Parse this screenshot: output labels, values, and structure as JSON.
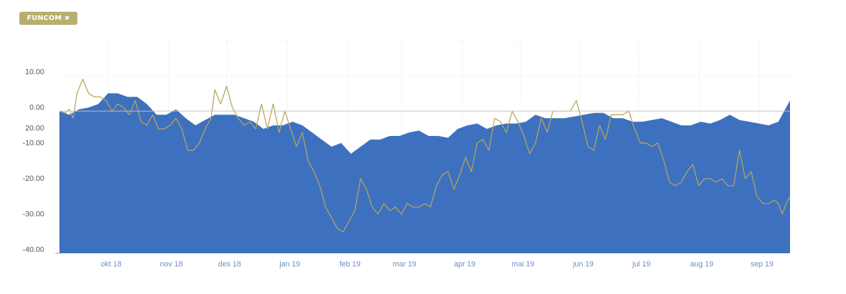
{
  "filter_chip": {
    "label": "FUNCOM",
    "remove_icon": "close-icon",
    "remove_glyph": "✖",
    "color": "#b9ae6e"
  },
  "chart_data": {
    "type": "area",
    "x_axis_type": "datetime",
    "ylim": [
      -40,
      20
    ],
    "y_ticks": [
      {
        "value": 10,
        "label": "10.00"
      },
      {
        "value": 0,
        "label": "0.00"
      },
      {
        "value": -10,
        "label": "-10.00"
      },
      {
        "value": -20,
        "label": "-20.00"
      },
      {
        "value": -30,
        "label": "-30.00"
      },
      {
        "value": -40,
        "label": "-40.00"
      }
    ],
    "y_tick_overlap_label": "20.00",
    "x_range": [
      "2018-09-03",
      "2019-09-14"
    ],
    "x_ticks": [
      {
        "date": "2018-10-01",
        "label": "okt 18"
      },
      {
        "date": "2018-11-01",
        "label": "nov 18"
      },
      {
        "date": "2018-12-01",
        "label": "des 18"
      },
      {
        "date": "2019-01-01",
        "label": "jan 19"
      },
      {
        "date": "2019-02-01",
        "label": "feb 19"
      },
      {
        "date": "2019-03-01",
        "label": "mar 19"
      },
      {
        "date": "2019-04-01",
        "label": "apr 19"
      },
      {
        "date": "2019-05-01",
        "label": "mai 19"
      },
      {
        "date": "2019-06-01",
        "label": "jun 19"
      },
      {
        "date": "2019-07-01",
        "label": "jul 19"
      },
      {
        "date": "2019-08-01",
        "label": "aug 19"
      },
      {
        "date": "2019-09-01",
        "label": "sep 19"
      }
    ],
    "grid": true,
    "series": [
      {
        "kind": "area",
        "color": "#3d71bf",
        "points": [
          [
            "2018-09-03",
            0
          ],
          [
            "2018-09-08",
            -1
          ],
          [
            "2018-09-13",
            0.5
          ],
          [
            "2018-09-18",
            1
          ],
          [
            "2018-09-23",
            2
          ],
          [
            "2018-09-28",
            5
          ],
          [
            "2018-10-03",
            5
          ],
          [
            "2018-10-08",
            4
          ],
          [
            "2018-10-13",
            4
          ],
          [
            "2018-10-18",
            2
          ],
          [
            "2018-10-23",
            -1
          ],
          [
            "2018-10-28",
            -1
          ],
          [
            "2018-11-02",
            0.5
          ],
          [
            "2018-11-07",
            -2
          ],
          [
            "2018-11-12",
            -4
          ],
          [
            "2018-11-17",
            -2.5
          ],
          [
            "2018-11-22",
            -1
          ],
          [
            "2018-11-27",
            -1
          ],
          [
            "2018-12-02",
            -1
          ],
          [
            "2018-12-07",
            -2
          ],
          [
            "2018-12-12",
            -3
          ],
          [
            "2018-12-17",
            -5
          ],
          [
            "2018-12-22",
            -4
          ],
          [
            "2018-12-27",
            -4
          ],
          [
            "2019-01-01",
            -3
          ],
          [
            "2019-01-06",
            -4
          ],
          [
            "2019-01-11",
            -6
          ],
          [
            "2019-01-16",
            -8
          ],
          [
            "2019-01-21",
            -10
          ],
          [
            "2019-01-26",
            -9
          ],
          [
            "2019-01-31",
            -12
          ],
          [
            "2019-02-05",
            -10
          ],
          [
            "2019-02-10",
            -8
          ],
          [
            "2019-02-15",
            -8
          ],
          [
            "2019-02-20",
            -7
          ],
          [
            "2019-02-25",
            -7
          ],
          [
            "2019-03-02",
            -6
          ],
          [
            "2019-03-07",
            -5.5
          ],
          [
            "2019-03-12",
            -7
          ],
          [
            "2019-03-17",
            -7
          ],
          [
            "2019-03-22",
            -7.5
          ],
          [
            "2019-03-27",
            -5
          ],
          [
            "2019-04-01",
            -4
          ],
          [
            "2019-04-06",
            -3.5
          ],
          [
            "2019-04-11",
            -5
          ],
          [
            "2019-04-16",
            -4
          ],
          [
            "2019-04-21",
            -3.5
          ],
          [
            "2019-04-26",
            -3.5
          ],
          [
            "2019-05-01",
            -3
          ],
          [
            "2019-05-06",
            -1
          ],
          [
            "2019-05-11",
            -2
          ],
          [
            "2019-05-16",
            -2
          ],
          [
            "2019-05-21",
            -2
          ],
          [
            "2019-05-26",
            -1.5
          ],
          [
            "2019-05-31",
            -1
          ],
          [
            "2019-06-05",
            -0.5
          ],
          [
            "2019-06-10",
            -0.5
          ],
          [
            "2019-06-15",
            -2
          ],
          [
            "2019-06-20",
            -2
          ],
          [
            "2019-06-25",
            -3
          ],
          [
            "2019-06-30",
            -3
          ],
          [
            "2019-07-05",
            -2.5
          ],
          [
            "2019-07-10",
            -2
          ],
          [
            "2019-07-15",
            -3
          ],
          [
            "2019-07-20",
            -4
          ],
          [
            "2019-07-25",
            -4
          ],
          [
            "2019-07-30",
            -3
          ],
          [
            "2019-08-04",
            -3.5
          ],
          [
            "2019-08-09",
            -2.5
          ],
          [
            "2019-08-14",
            -1
          ],
          [
            "2019-08-19",
            -2.5
          ],
          [
            "2019-08-24",
            -3
          ],
          [
            "2019-08-29",
            -3.5
          ],
          [
            "2019-09-03",
            -4
          ],
          [
            "2019-09-08",
            -3
          ],
          [
            "2019-09-14",
            3
          ]
        ]
      },
      {
        "kind": "line",
        "color": "#b5a45e",
        "points": [
          [
            "2018-09-03",
            0
          ],
          [
            "2018-09-06",
            -0.5
          ],
          [
            "2018-09-08",
            0.5
          ],
          [
            "2018-09-10",
            -2
          ],
          [
            "2018-09-12",
            5
          ],
          [
            "2018-09-15",
            9
          ],
          [
            "2018-09-18",
            5
          ],
          [
            "2018-09-21",
            4
          ],
          [
            "2018-09-24",
            4
          ],
          [
            "2018-09-27",
            3
          ],
          [
            "2018-09-30",
            0
          ],
          [
            "2018-10-03",
            2
          ],
          [
            "2018-10-06",
            1
          ],
          [
            "2018-10-09",
            -1
          ],
          [
            "2018-10-12",
            3
          ],
          [
            "2018-10-15",
            -3
          ],
          [
            "2018-10-18",
            -4
          ],
          [
            "2018-10-21",
            -1
          ],
          [
            "2018-10-24",
            -5
          ],
          [
            "2018-10-27",
            -5
          ],
          [
            "2018-10-30",
            -4
          ],
          [
            "2018-11-02",
            -2
          ],
          [
            "2018-11-05",
            -5
          ],
          [
            "2018-11-08",
            -11
          ],
          [
            "2018-11-11",
            -11
          ],
          [
            "2018-11-14",
            -9
          ],
          [
            "2018-11-17",
            -5
          ],
          [
            "2018-11-20",
            -2
          ],
          [
            "2018-11-22",
            6
          ],
          [
            "2018-11-25",
            2
          ],
          [
            "2018-11-28",
            7
          ],
          [
            "2018-12-01",
            1
          ],
          [
            "2018-12-04",
            -2
          ],
          [
            "2018-12-07",
            -4
          ],
          [
            "2018-12-10",
            -3
          ],
          [
            "2018-12-13",
            -5
          ],
          [
            "2018-12-16",
            2
          ],
          [
            "2018-12-19",
            -5
          ],
          [
            "2018-12-22",
            2
          ],
          [
            "2018-12-25",
            -6
          ],
          [
            "2018-12-28",
            0
          ],
          [
            "2018-12-31",
            -5
          ],
          [
            "2019-01-03",
            -10
          ],
          [
            "2019-01-06",
            -6
          ],
          [
            "2019-01-09",
            -14
          ],
          [
            "2019-01-12",
            -17
          ],
          [
            "2019-01-15",
            -21
          ],
          [
            "2019-01-18",
            -27
          ],
          [
            "2019-01-21",
            -30
          ],
          [
            "2019-01-24",
            -33
          ],
          [
            "2019-01-27",
            -34
          ],
          [
            "2019-01-30",
            -31
          ],
          [
            "2019-02-02",
            -28
          ],
          [
            "2019-02-05",
            -19
          ],
          [
            "2019-02-08",
            -22
          ],
          [
            "2019-02-11",
            -27
          ],
          [
            "2019-02-14",
            -29
          ],
          [
            "2019-02-17",
            -26
          ],
          [
            "2019-02-20",
            -28
          ],
          [
            "2019-02-23",
            -27
          ],
          [
            "2019-02-26",
            -29
          ],
          [
            "2019-03-01",
            -26
          ],
          [
            "2019-03-04",
            -27
          ],
          [
            "2019-03-07",
            -27
          ],
          [
            "2019-03-10",
            -26
          ],
          [
            "2019-03-13",
            -27
          ],
          [
            "2019-03-16",
            -21
          ],
          [
            "2019-03-19",
            -18
          ],
          [
            "2019-03-22",
            -17
          ],
          [
            "2019-03-25",
            -22
          ],
          [
            "2019-03-28",
            -18
          ],
          [
            "2019-03-31",
            -13
          ],
          [
            "2019-04-03",
            -17
          ],
          [
            "2019-04-06",
            -9
          ],
          [
            "2019-04-09",
            -8
          ],
          [
            "2019-04-12",
            -11
          ],
          [
            "2019-04-15",
            -2
          ],
          [
            "2019-04-18",
            -3
          ],
          [
            "2019-04-21",
            -6
          ],
          [
            "2019-04-24",
            0
          ],
          [
            "2019-04-27",
            -3
          ],
          [
            "2019-04-30",
            -7
          ],
          [
            "2019-05-03",
            -12
          ],
          [
            "2019-05-06",
            -9
          ],
          [
            "2019-05-09",
            -2
          ],
          [
            "2019-05-12",
            -6
          ],
          [
            "2019-05-15",
            0
          ],
          [
            "2019-05-18",
            0
          ],
          [
            "2019-05-21",
            0
          ],
          [
            "2019-05-24",
            0
          ],
          [
            "2019-05-27",
            3
          ],
          [
            "2019-05-30",
            -3
          ],
          [
            "2019-06-02",
            -10
          ],
          [
            "2019-06-05",
            -11
          ],
          [
            "2019-06-08",
            -4
          ],
          [
            "2019-06-11",
            -8
          ],
          [
            "2019-06-14",
            -1
          ],
          [
            "2019-06-17",
            -1
          ],
          [
            "2019-06-20",
            -1
          ],
          [
            "2019-06-23",
            0
          ],
          [
            "2019-06-26",
            -5
          ],
          [
            "2019-06-29",
            -9
          ],
          [
            "2019-07-02",
            -9
          ],
          [
            "2019-07-05",
            -10
          ],
          [
            "2019-07-08",
            -9
          ],
          [
            "2019-07-11",
            -14
          ],
          [
            "2019-07-14",
            -20
          ],
          [
            "2019-07-17",
            -21
          ],
          [
            "2019-07-20",
            -20
          ],
          [
            "2019-07-23",
            -17
          ],
          [
            "2019-07-26",
            -15
          ],
          [
            "2019-07-29",
            -21
          ],
          [
            "2019-08-01",
            -19
          ],
          [
            "2019-08-04",
            -19
          ],
          [
            "2019-08-07",
            -20
          ],
          [
            "2019-08-10",
            -19
          ],
          [
            "2019-08-13",
            -21
          ],
          [
            "2019-08-16",
            -21
          ],
          [
            "2019-08-19",
            -11
          ],
          [
            "2019-08-22",
            -19
          ],
          [
            "2019-08-25",
            -17
          ],
          [
            "2019-08-28",
            -24
          ],
          [
            "2019-08-31",
            -26
          ],
          [
            "2019-09-03",
            -26
          ],
          [
            "2019-09-06",
            -25
          ],
          [
            "2019-09-08",
            -26
          ],
          [
            "2019-09-10",
            -29
          ],
          [
            "2019-09-12",
            -26
          ],
          [
            "2019-09-14",
            -24
          ]
        ]
      }
    ]
  }
}
